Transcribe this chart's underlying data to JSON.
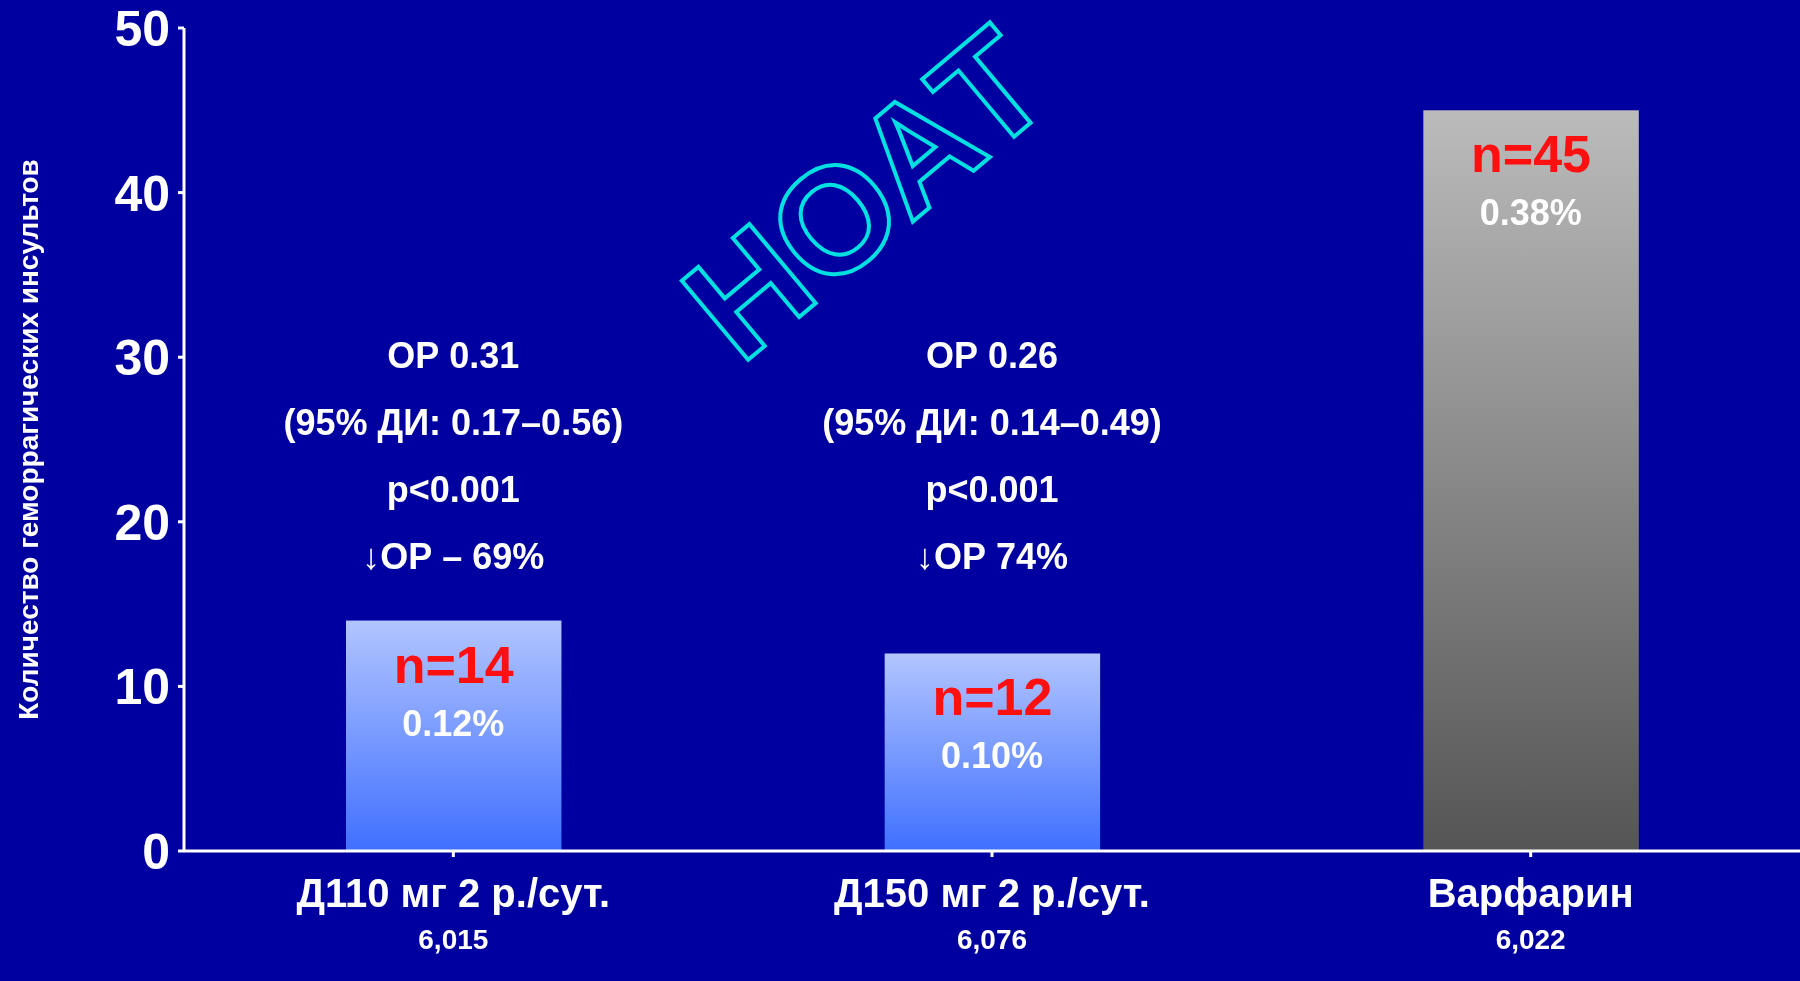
{
  "chart_data": {
    "type": "bar",
    "ylabel": "Количество геморрагических инсультов",
    "categories": [
      "Д110 мг 2 р./сут.\n6,015",
      "Д150 мг 2 р./сут.\n6,076",
      "Варфарин\n6,022"
    ],
    "values": [
      14,
      12,
      45
    ],
    "colors": [
      "#3f6fff",
      "#3f6fff",
      "#555555"
    ],
    "value_labels": [
      "n=14",
      "n=12",
      "n=45"
    ],
    "ylim": [
      0,
      50
    ],
    "yticks": [
      0,
      10,
      20,
      30,
      40,
      50
    ],
    "grid": false,
    "legend": false,
    "annotations": [
      {
        "text": "0.12%",
        "x": "Д110 мг 2 р./сут.\n6,015",
        "y": 14
      },
      {
        "text": "0.10%",
        "x": "Д150 мг 2 р./сут.\n6,076",
        "y": 12
      },
      {
        "text": "0.38%",
        "x": "Варфарин\n6,022",
        "y": 45
      },
      "ОР 0.31\n(95% ДИ: 0.17–0.56)\np<0.001\n↓ОР – 69%",
      "ОР 0.26\n(95% ДИ: 0.14–0.49)\np<0.001\n↓ОР 74%",
      "НОАТ"
    ]
  }
}
